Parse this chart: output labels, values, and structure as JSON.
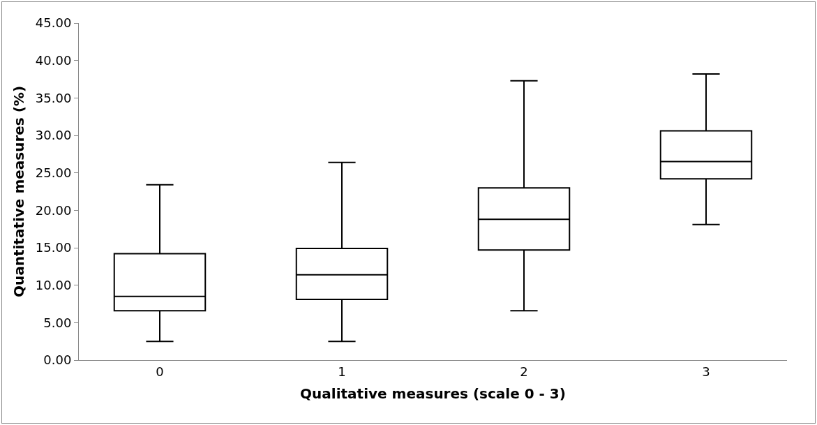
{
  "chart_data": {
    "type": "box",
    "xlabel": "Qualitative measures (scale 0 - 3)",
    "ylabel": "Quantitative measures (%)",
    "categories": [
      "0",
      "1",
      "2",
      "3"
    ],
    "series": [
      {
        "color": "#000000",
        "boxes": [
          {
            "low": 2.5,
            "q1": 6.6,
            "median": 8.5,
            "q3": 14.2,
            "high": 23.4
          },
          {
            "low": 2.5,
            "q1": 8.1,
            "median": 11.4,
            "q3": 14.9,
            "high": 26.4
          },
          {
            "low": 6.6,
            "q1": 14.7,
            "median": 18.8,
            "q3": 23.0,
            "high": 37.3
          },
          {
            "low": 18.1,
            "q1": 24.2,
            "median": 26.5,
            "q3": 30.6,
            "high": 38.2
          }
        ]
      }
    ],
    "ylim": [
      0,
      45
    ],
    "yticks": [
      {
        "value": 0,
        "label": "0.00"
      },
      {
        "value": 5,
        "label": "5.00"
      },
      {
        "value": 10,
        "label": "10.00"
      },
      {
        "value": 15,
        "label": "15.00"
      },
      {
        "value": 20,
        "label": "20.00"
      },
      {
        "value": 25,
        "label": "25.00"
      },
      {
        "value": 30,
        "label": "30.00"
      },
      {
        "value": 35,
        "label": "35.00"
      },
      {
        "value": 40,
        "label": "40.00"
      },
      {
        "value": 45,
        "label": "45.00"
      }
    ],
    "grid": false
  }
}
